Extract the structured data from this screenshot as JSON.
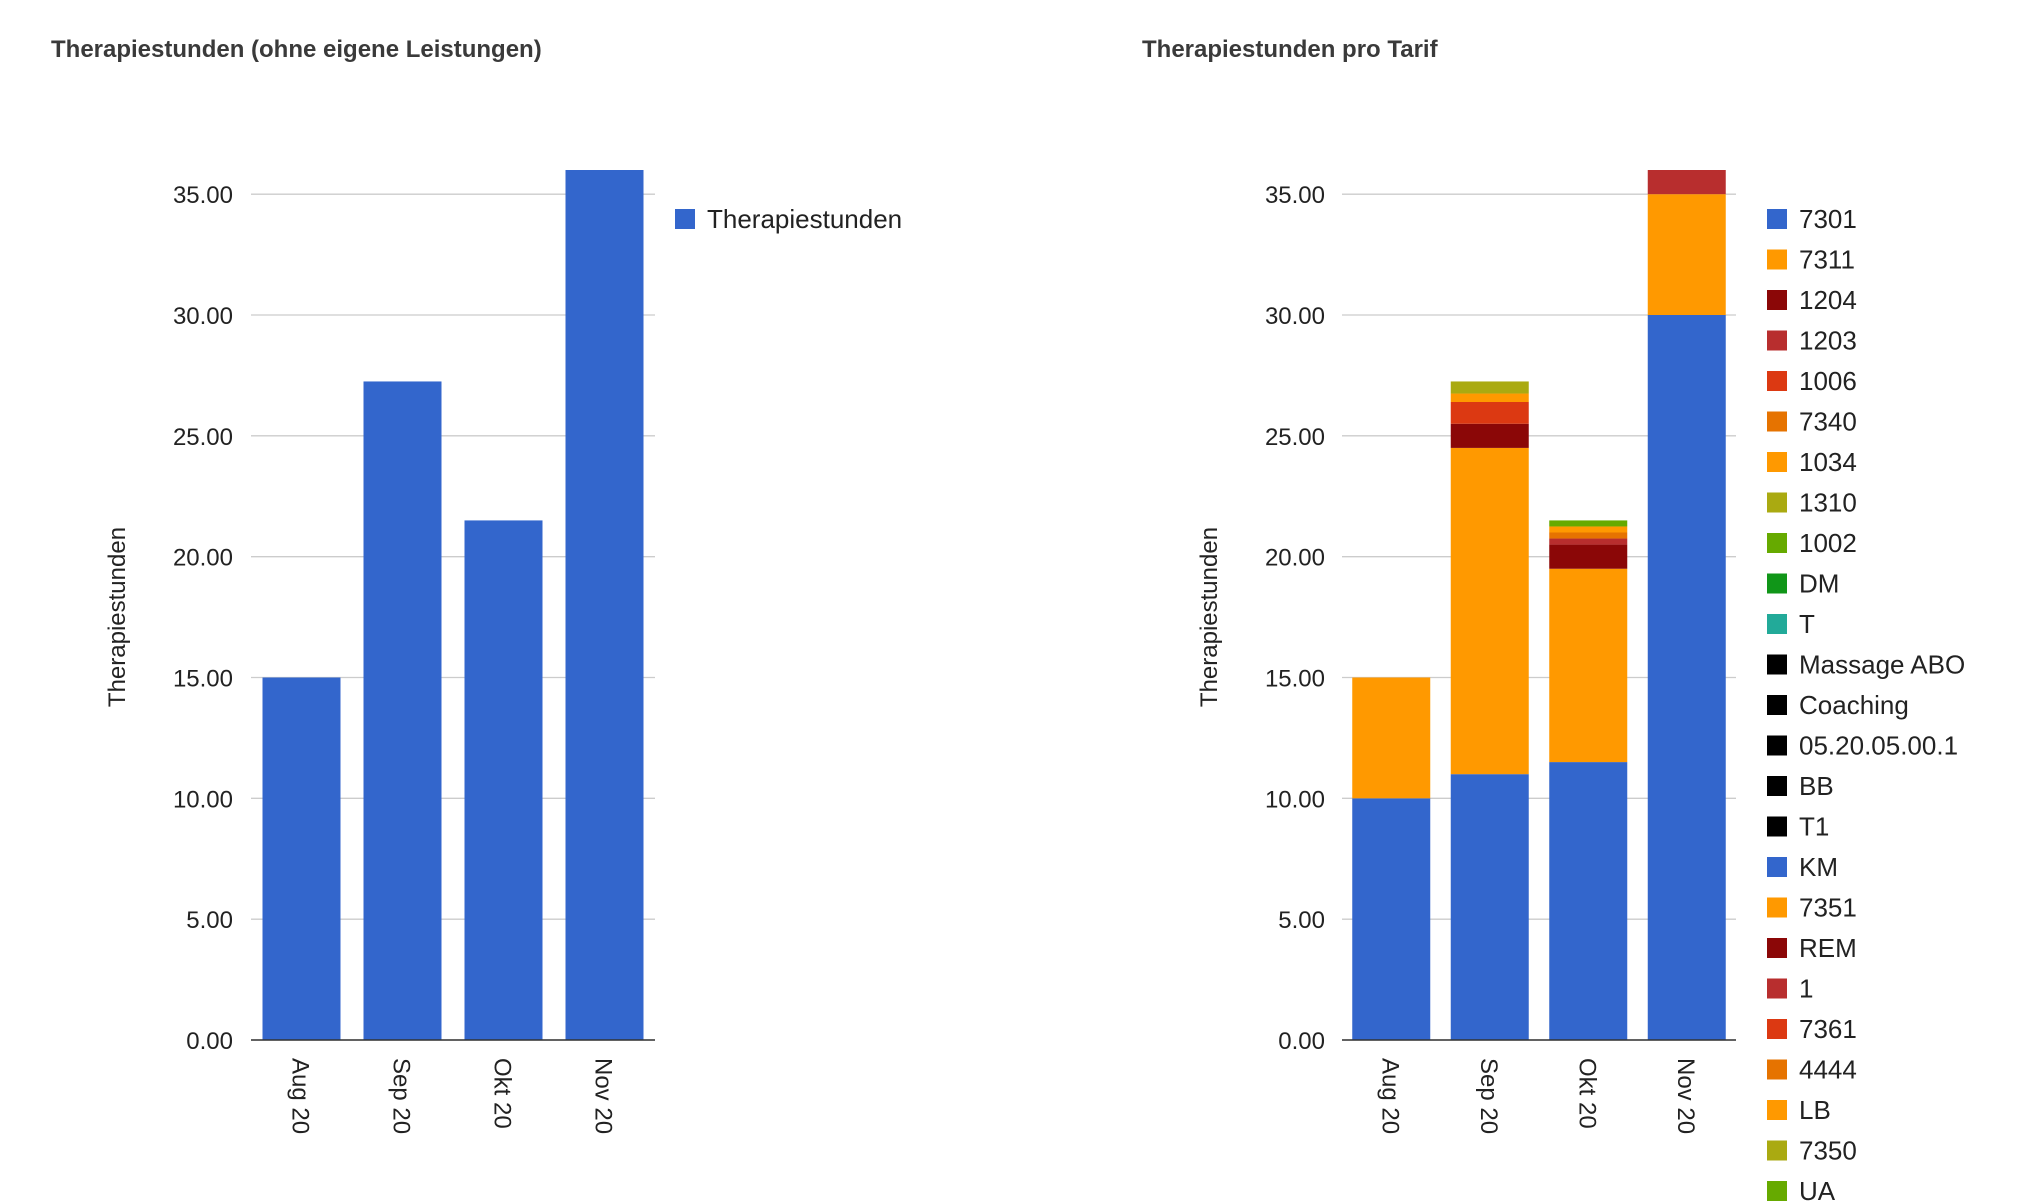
{
  "chart_data": [
    {
      "type": "bar",
      "title": "Therapiestunden (ohne eigene Leistungen)",
      "xlabel": "",
      "ylabel": "Therapiestunden",
      "categories": [
        "Aug 20",
        "Sep 20",
        "Okt 20",
        "Nov 20"
      ],
      "y_ticks": [
        "0.00",
        "5.00",
        "10.00",
        "15.00",
        "20.00",
        "25.00",
        "30.00",
        "35.00"
      ],
      "ylim": [
        0,
        36
      ],
      "grid": true,
      "legend_position": "right",
      "series": [
        {
          "name": "Therapiestunden",
          "color": "#3366cc",
          "values": [
            15,
            27.25,
            21.5,
            36
          ]
        }
      ]
    },
    {
      "type": "bar",
      "stacked": true,
      "title": "Therapiestunden pro Tarif",
      "xlabel": "",
      "ylabel": "Therapiestunden",
      "categories": [
        "Aug 20",
        "Sep 20",
        "Okt 20",
        "Nov 20"
      ],
      "y_ticks": [
        "0.00",
        "5.00",
        "10.00",
        "15.00",
        "20.00",
        "25.00",
        "30.00",
        "35.00"
      ],
      "ylim": [
        0,
        36
      ],
      "grid": true,
      "legend_position": "right",
      "series": [
        {
          "name": "7301",
          "color": "#3366cc",
          "values": [
            10,
            11,
            11.5,
            30
          ]
        },
        {
          "name": "7311",
          "color": "#ff9900",
          "values": [
            5,
            13.5,
            8,
            5
          ]
        },
        {
          "name": "1204",
          "color": "#8b0707",
          "values": [
            0,
            1,
            1,
            0
          ]
        },
        {
          "name": "1203",
          "color": "#b82e2e",
          "values": [
            0,
            0,
            0.25,
            1
          ]
        },
        {
          "name": "1006",
          "color": "#dc3912",
          "values": [
            0,
            0.9,
            0,
            0
          ]
        },
        {
          "name": "7340",
          "color": "#e67300",
          "values": [
            0,
            0,
            0.25,
            0
          ]
        },
        {
          "name": "1034",
          "color": "#ff9900",
          "values": [
            0,
            0.35,
            0.25,
            0
          ]
        },
        {
          "name": "1310",
          "color": "#aaaa11",
          "values": [
            0,
            0.5,
            0,
            0
          ]
        },
        {
          "name": "1002",
          "color": "#66aa00",
          "values": [
            0,
            0,
            0.25,
            0
          ]
        },
        {
          "name": "DM",
          "color": "#109618",
          "values": [
            0,
            0,
            0,
            0
          ]
        },
        {
          "name": "T",
          "color": "#22aa99",
          "values": [
            0,
            0,
            0,
            0
          ]
        },
        {
          "name": "Massage ABO",
          "color": "#000000",
          "values": [
            0,
            0,
            0,
            0
          ]
        },
        {
          "name": "Coaching",
          "color": "#000000",
          "values": [
            0,
            0,
            0,
            0
          ]
        },
        {
          "name": "05.20.05.00.1",
          "color": "#000000",
          "values": [
            0,
            0,
            0,
            0
          ]
        },
        {
          "name": "BB",
          "color": "#000000",
          "values": [
            0,
            0,
            0,
            0
          ]
        },
        {
          "name": "T1",
          "color": "#000000",
          "values": [
            0,
            0,
            0,
            0
          ]
        },
        {
          "name": "KM",
          "color": "#3366cc",
          "values": [
            0,
            0,
            0,
            0
          ]
        },
        {
          "name": "7351",
          "color": "#ff9900",
          "values": [
            0,
            0,
            0,
            0
          ]
        },
        {
          "name": "REM",
          "color": "#8b0707",
          "values": [
            0,
            0,
            0,
            0
          ]
        },
        {
          "name": "1",
          "color": "#b82e2e",
          "values": [
            0,
            0,
            0,
            0
          ]
        },
        {
          "name": "7361",
          "color": "#dc3912",
          "values": [
            0,
            0,
            0,
            0
          ]
        },
        {
          "name": "4444",
          "color": "#e67300",
          "values": [
            0,
            0,
            0,
            0
          ]
        },
        {
          "name": "LB",
          "color": "#ff9900",
          "values": [
            0,
            0,
            0,
            0
          ]
        },
        {
          "name": "7350",
          "color": "#aaaa11",
          "values": [
            0,
            0,
            0,
            0
          ]
        },
        {
          "name": "UA",
          "color": "#66aa00",
          "values": [
            0,
            0,
            0,
            0
          ]
        }
      ]
    }
  ]
}
